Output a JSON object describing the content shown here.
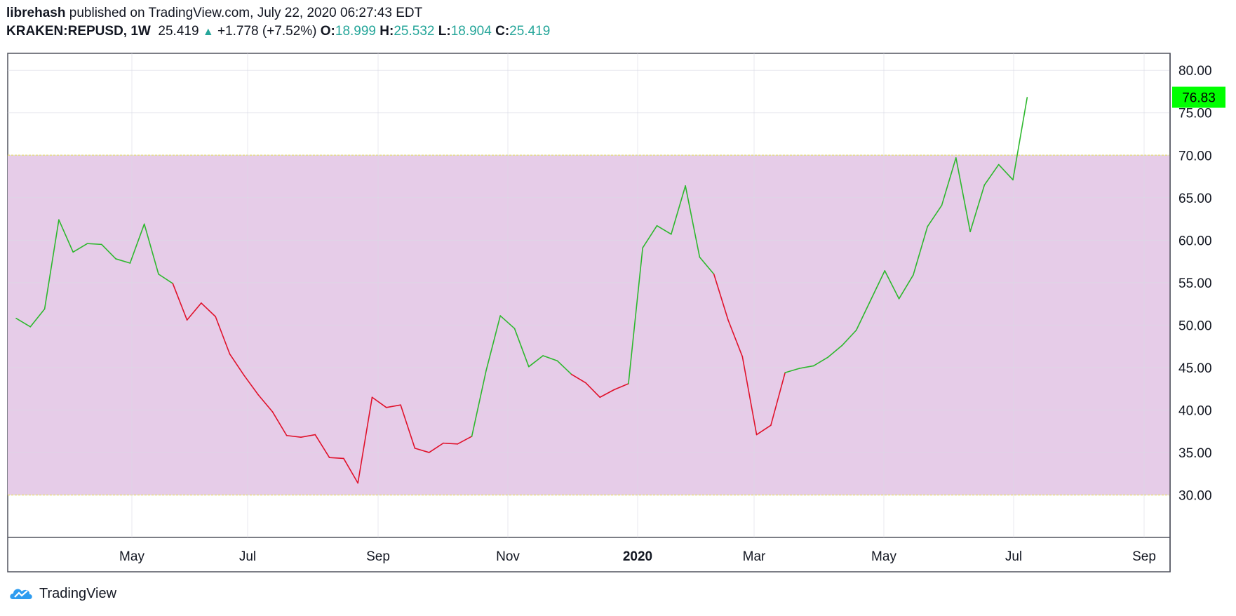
{
  "header": {
    "author": "librehash",
    "published_text": "published on TradingView.com, July 22, 2020 06:27:43 EDT",
    "symbol": "KRAKEN:REPUSD, 1W",
    "last": "25.419",
    "change": "+1.778 (+7.52%)",
    "o_label": "O:",
    "o_value": "18.999",
    "h_label": "H:",
    "h_value": "25.532",
    "l_label": "L:",
    "l_value": "18.904",
    "c_label": "C:",
    "c_value": "25.419"
  },
  "footer": {
    "brand": "TradingView"
  },
  "colors": {
    "up": "#2db82d",
    "down": "#e0112b",
    "band": "#e6cce8",
    "band_edge": "#f2dc48",
    "price_tag": "#00ff00"
  },
  "chart_data": {
    "type": "line",
    "ylim": [
      25,
      82
    ],
    "y_ticks": [
      "30.00",
      "35.00",
      "40.00",
      "45.00",
      "50.00",
      "55.00",
      "60.00",
      "65.00",
      "70.00",
      "75.00",
      "80.00"
    ],
    "x_ticks": [
      "May",
      "Jul",
      "Sep",
      "Nov",
      "2020",
      "Mar",
      "May",
      "Jul",
      "Sep"
    ],
    "bold_x_tick": "2020",
    "last_price_label": "76.83",
    "band": [
      30,
      70
    ],
    "series": [
      {
        "values": [
          50.8,
          49.8,
          51.9,
          62.4,
          58.6,
          59.6,
          59.5,
          57.8,
          57.3,
          61.9,
          56,
          54.9,
          50.6,
          52.6,
          51,
          46.6,
          44.1,
          41.8,
          39.8,
          37,
          36.8,
          37.1,
          34.4,
          34.3,
          31.4,
          41.5,
          40.3,
          40.6,
          35.5,
          35,
          36.1,
          36,
          36.9,
          44.6,
          51.1,
          49.6,
          45.1,
          46.4,
          45.8,
          44.2,
          43.2,
          41.5,
          42.4,
          43.1,
          59.1,
          61.7,
          60.7,
          66.4,
          58,
          56,
          50.6,
          46.3,
          37.1,
          38.2,
          44.4,
          44.9,
          45.2,
          46.2,
          47.6,
          49.4,
          52.9,
          56.4,
          53.1,
          55.9,
          61.6,
          64.1,
          69.7,
          61,
          66.5,
          68.9,
          67.1,
          76.8
        ],
        "directions": [
          "up",
          "up",
          "up",
          "up",
          "up",
          "up",
          "up",
          "up",
          "up",
          "up",
          "up",
          "down",
          "down",
          "down",
          "down",
          "down",
          "down",
          "down",
          "down",
          "down",
          "down",
          "down",
          "down",
          "down",
          "down",
          "down",
          "down",
          "down",
          "down",
          "down",
          "down",
          "down",
          "up",
          "up",
          "up",
          "up",
          "up",
          "up",
          "up",
          "down",
          "down",
          "down",
          "down",
          "up",
          "up",
          "up",
          "up",
          "up",
          "up",
          "down",
          "down",
          "down",
          "down",
          "down",
          "up",
          "up",
          "up",
          "up",
          "up",
          "up",
          "up",
          "up",
          "up",
          "up",
          "up",
          "up",
          "up",
          "up",
          "up",
          "up",
          "up"
        ]
      }
    ]
  }
}
